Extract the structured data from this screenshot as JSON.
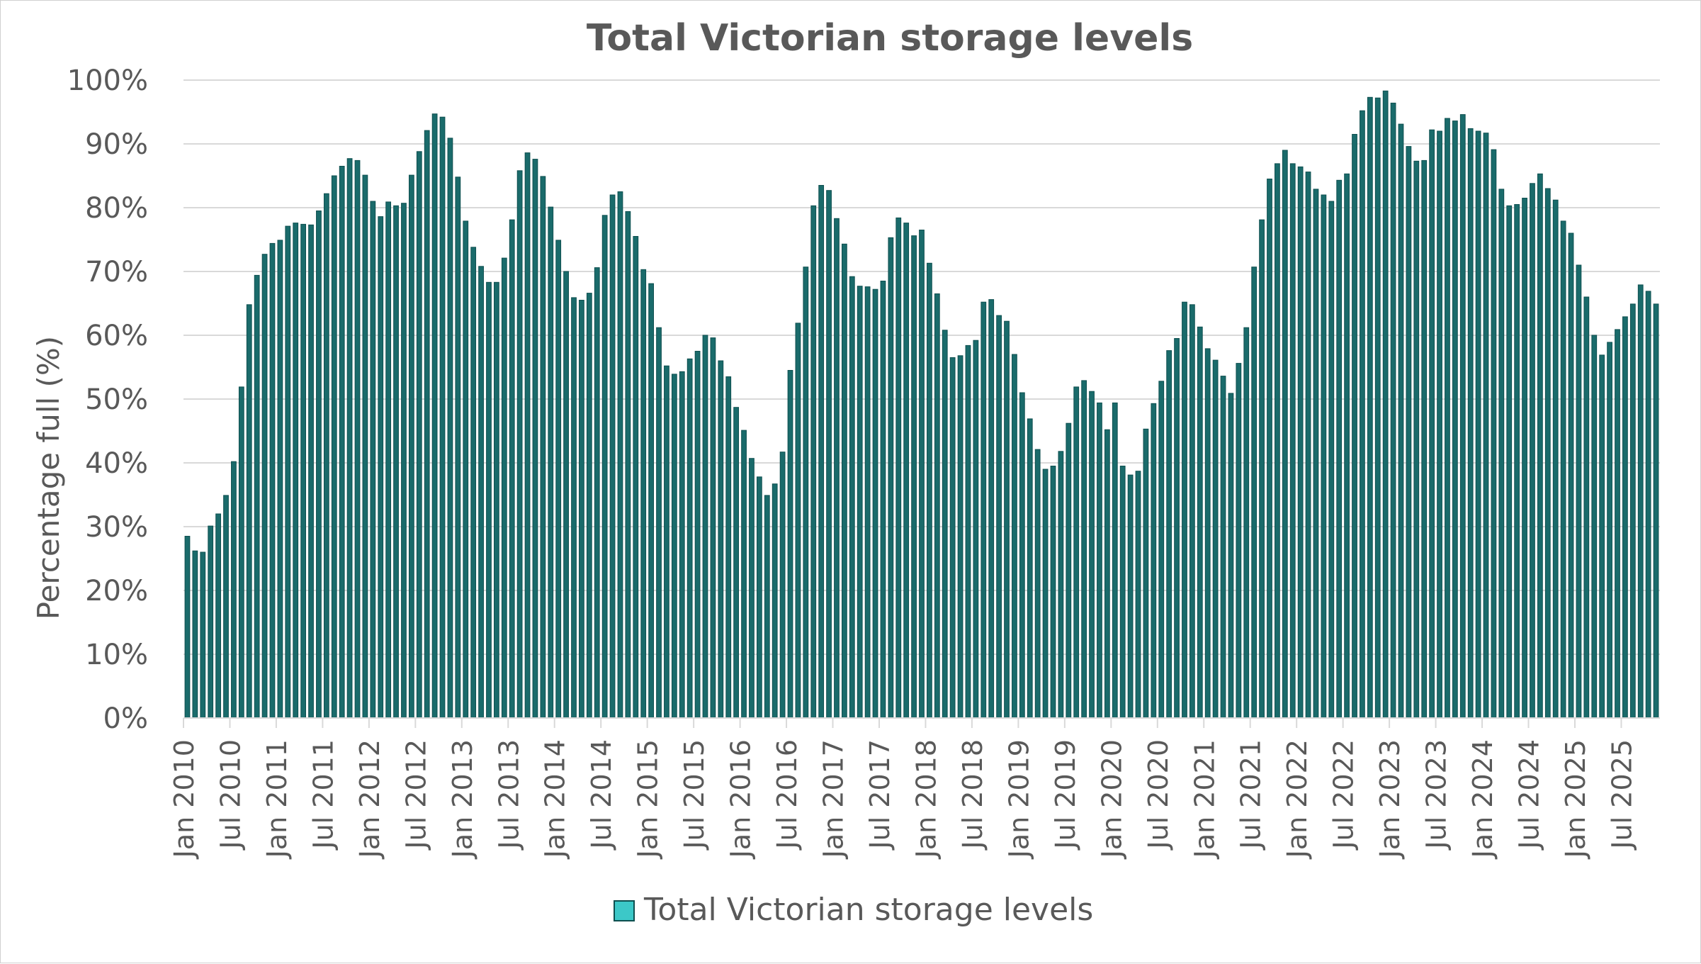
{
  "chart_data": {
    "type": "bar",
    "title": "Total Victorian storage levels",
    "ylabel": "Percentage full (%)",
    "xlabel": "",
    "ylim": [
      0,
      100
    ],
    "yticks": [
      "0%",
      "10%",
      "20%",
      "30%",
      "40%",
      "50%",
      "60%",
      "70%",
      "80%",
      "90%",
      "100%"
    ],
    "xticks": [
      "Jan 2010",
      "Jul 2010",
      "Jan 2011",
      "Jul 2011",
      "Jan 2012",
      "Jul 2012",
      "Jan 2013",
      "Jul 2013",
      "Jan 2014",
      "Jul 2014",
      "Jan 2015",
      "Jul 2015",
      "Jan 2016",
      "Jul 2016",
      "Jan 2017",
      "Jul 2017",
      "Jan 2018",
      "Jul 2018",
      "Jan 2019",
      "Jul 2019",
      "Jan 2020",
      "Jul 2020",
      "Jan 2021",
      "Jul 2021",
      "Jan 2022",
      "Jul 2022",
      "Jan 2023",
      "Jul 2023",
      "Jan 2024",
      "Jul 2024",
      "Jan 2025",
      "Jul 2025"
    ],
    "grid": true,
    "legend_position": "bottom",
    "series": [
      {
        "name": "Total Victorian storage levels",
        "color": "#1A6B6B",
        "values": [
          28.5,
          26.2,
          26.0,
          30.1,
          32.0,
          34.9,
          40.2,
          51.9,
          64.8,
          69.4,
          72.7,
          74.4,
          74.9,
          77.1,
          77.6,
          77.4,
          77.3,
          79.5,
          82.2,
          85.0,
          86.5,
          87.7,
          87.4,
          85.1,
          81.0,
          78.6,
          80.9,
          80.3,
          80.7,
          85.1,
          88.8,
          92.1,
          94.7,
          94.2,
          90.9,
          84.8,
          77.9,
          73.8,
          70.8,
          68.3,
          68.3,
          72.1,
          78.1,
          85.8,
          88.6,
          87.6,
          84.9,
          80.1,
          74.9,
          70.0,
          65.9,
          65.5,
          66.6,
          70.6,
          78.8,
          82.0,
          82.5,
          79.4,
          75.5,
          70.3,
          68.1,
          61.2,
          55.2,
          53.9,
          54.3,
          56.3,
          57.5,
          60.0,
          59.6,
          56.0,
          53.5,
          48.7,
          45.1,
          40.7,
          37.8,
          34.9,
          36.7,
          41.7,
          54.5,
          61.9,
          70.7,
          80.3,
          83.5,
          82.7,
          78.3,
          74.3,
          69.2,
          67.7,
          67.6,
          67.2,
          68.5,
          75.3,
          78.4,
          77.6,
          75.6,
          76.5,
          71.3,
          66.5,
          60.8,
          56.5,
          56.8,
          58.4,
          59.2,
          65.2,
          65.6,
          63.1,
          62.2,
          57.0,
          51.0,
          46.9,
          42.1,
          39.0,
          39.5,
          41.8,
          46.2,
          51.9,
          52.9,
          51.2,
          49.4,
          45.2,
          49.4,
          39.5,
          38.1,
          38.7,
          45.3,
          49.3,
          52.8,
          57.6,
          59.5,
          65.2,
          64.8,
          61.3,
          57.9,
          56.1,
          53.6,
          50.9,
          55.6,
          61.2,
          70.7,
          78.1,
          84.5,
          86.9,
          89.0,
          86.9,
          86.4,
          85.6,
          82.9,
          82.0,
          81.0,
          84.3,
          85.3,
          91.5,
          95.2,
          97.3,
          97.2,
          98.3,
          96.4,
          93.1,
          89.6,
          87.3,
          87.4,
          92.2,
          92.0,
          94.0,
          93.6,
          94.6,
          92.4,
          92.0,
          91.7,
          89.1,
          82.9,
          80.3,
          80.5,
          81.5,
          83.8,
          85.3,
          83.0,
          81.2,
          77.9,
          76.0,
          71.0,
          66.0,
          60.0,
          56.9,
          58.9,
          60.9,
          62.9,
          64.9,
          67.9,
          66.9,
          64.9
        ]
      }
    ]
  },
  "colors": {
    "bar_fill": "#1A6B6B",
    "bar_edge": "#0E4F4F",
    "gap": "#C9D6D6",
    "grid": "#D9D9D9",
    "text": "#595959",
    "legend_swatch": "#3CC8C8"
  },
  "legend": {
    "label": "Total Victorian storage levels",
    "icon": "teal-square-legend-swatch"
  }
}
